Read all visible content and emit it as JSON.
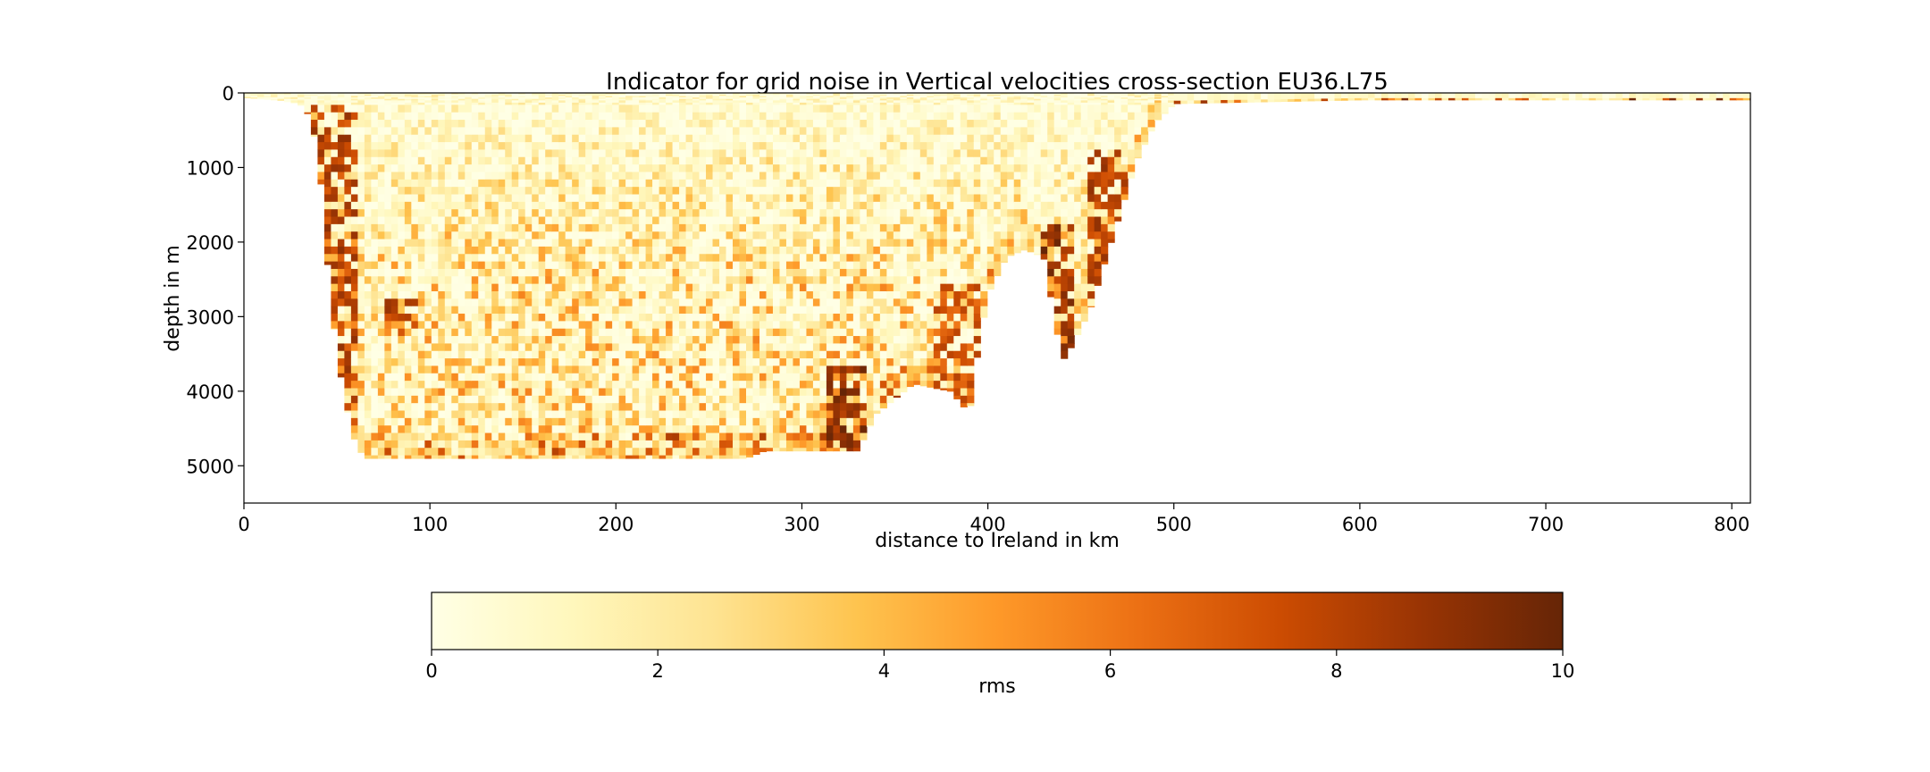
{
  "chart_data": {
    "type": "heatmap",
    "title": "Indicator for grid noise in Vertical velocities cross-section EU36.L75",
    "xlabel": "distance to Ireland in km",
    "ylabel": "depth in m",
    "xlim": [
      0,
      810
    ],
    "ylim": [
      5500,
      0
    ],
    "x_ticks": [
      0,
      100,
      200,
      300,
      400,
      500,
      600,
      700,
      800
    ],
    "y_ticks": [
      0,
      1000,
      2000,
      3000,
      4000,
      5000
    ],
    "colorbar": {
      "label": "rms",
      "range": [
        0,
        10
      ],
      "ticks": [
        0,
        2,
        4,
        6,
        8,
        10
      ],
      "colormap": "YlOrBr",
      "colors": [
        "#ffffe5",
        "#fff7bc",
        "#fee391",
        "#fec44f",
        "#fe9929",
        "#ec7014",
        "#cc4c02",
        "#993404",
        "#662506"
      ]
    },
    "bathymetry_profile": [
      [
        0,
        60
      ],
      [
        20,
        100
      ],
      [
        30,
        150
      ],
      [
        35,
        300
      ],
      [
        40,
        800
      ],
      [
        45,
        2300
      ],
      [
        50,
        3500
      ],
      [
        55,
        4200
      ],
      [
        60,
        4700
      ],
      [
        65,
        4900
      ],
      [
        270,
        4900
      ],
      [
        280,
        4800
      ],
      [
        330,
        4800
      ],
      [
        340,
        4300
      ],
      [
        360,
        3900
      ],
      [
        380,
        4000
      ],
      [
        390,
        4300
      ],
      [
        395,
        3400
      ],
      [
        400,
        2700
      ],
      [
        410,
        2200
      ],
      [
        420,
        2100
      ],
      [
        430,
        2200
      ],
      [
        435,
        2900
      ],
      [
        440,
        3600
      ],
      [
        445,
        3400
      ],
      [
        455,
        2900
      ],
      [
        460,
        2500
      ],
      [
        470,
        1700
      ],
      [
        480,
        900
      ],
      [
        490,
        400
      ],
      [
        500,
        150
      ],
      [
        600,
        100
      ],
      [
        810,
        100
      ]
    ],
    "high_rms_regions": [
      {
        "x": [
          30,
          60
        ],
        "depth": [
          150,
          4200
        ],
        "rms": 9
      },
      {
        "x": [
          75,
          95
        ],
        "depth": [
          2700,
          3200
        ],
        "rms": 9
      },
      {
        "x": [
          315,
          335
        ],
        "depth": [
          3600,
          4800
        ],
        "rms": 10
      },
      {
        "x": [
          430,
          445
        ],
        "depth": [
          1700,
          3600
        ],
        "rms": 10
      },
      {
        "x": [
          455,
          475
        ],
        "depth": [
          700,
          2700
        ],
        "rms": 9
      },
      {
        "x": [
          370,
          395
        ],
        "depth": [
          2500,
          4200
        ],
        "rms": 8
      },
      {
        "x": [
          500,
          810
        ],
        "depth": [
          100,
          130
        ],
        "rms": 7
      }
    ]
  }
}
